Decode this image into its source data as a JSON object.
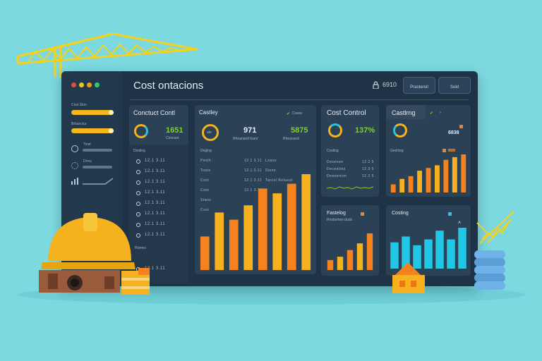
{
  "window": {
    "title": "Cost ontacions",
    "lock_text": "6910",
    "btn1": "Pranteroil",
    "btn2": "Sold",
    "dots": [
      "#e74c3c",
      "#f1c40f",
      "#f39c12",
      "#2ecc71"
    ]
  },
  "sidebar": {
    "label1": "Cost Stoo",
    "label2": "Brbunctur",
    "items": [
      {
        "icon": "c-icon",
        "label": "Tinst"
      },
      {
        "icon": "gear-icon",
        "label": "Drrec"
      },
      {
        "icon": "chart-icon",
        "label": ""
      }
    ]
  },
  "panel1": {
    "title": "Conctuct Contl",
    "kpi": "1651",
    "kpi_sub": "Concast",
    "section": "Desting",
    "rows": [
      "12.1 3.11",
      "12.1 3.11",
      "12.1 3.11",
      "12.1 3.11",
      "12.1 3.11",
      "12.1 3.11",
      "12.1 3.11",
      "12.1 3.11"
    ],
    "footer": "Romes",
    "footer2": "12.1 3.11"
  },
  "panel2": {
    "title": "Castley",
    "badge": "Cosse",
    "ring_label": "ate",
    "kpi1": "971",
    "kpi1_sub": "Rheansed toanr",
    "kpi2": "5875",
    "kpi2_sub": "Rheansed",
    "section": "Deging",
    "rows": [
      {
        "a": "Pesth",
        "b": "12.1 3.11",
        "c": "Loase"
      },
      {
        "a": "Toats",
        "b": "12.1 3.11",
        "c": "Siene"
      },
      {
        "a": "Cost",
        "b": "12.1 3.11",
        "c": "Tarcol Retuest"
      },
      {
        "a": "Cost",
        "b": "12.1 3.11",
        "c": ""
      },
      {
        "a": "Stans",
        "b": "",
        "c": ""
      },
      {
        "a": "Cost",
        "b": "",
        "c": ""
      }
    ]
  },
  "panel3": {
    "title": "Cost Control",
    "kpi": "137%",
    "section": "Cosling",
    "rows": [
      {
        "a": "Desenee",
        "b": "12.3 5"
      },
      {
        "a": "Deceaties",
        "b": "12.3 5"
      },
      {
        "a": "Deseenion",
        "b": "12.3 5"
      }
    ]
  },
  "panel4": {
    "title": "Castlrng",
    "kpi": "6838",
    "section": "Geshtsg",
    "chart_values": [
      3,
      5,
      6,
      8,
      9,
      10,
      12,
      13,
      14
    ]
  },
  "panel5": {
    "title": "Fastelog",
    "sub": "Rnsbortwn duds",
    "chart_values": [
      3,
      4,
      6,
      8,
      11
    ]
  },
  "panel6": {
    "title": "Costing",
    "chart_values": [
      9,
      11,
      8,
      10,
      13,
      10,
      14
    ]
  },
  "main_chart": {
    "values": [
      14,
      24,
      21,
      27,
      34,
      32,
      36,
      40
    ]
  },
  "colors": {
    "accent_orange": "#f6821f",
    "accent_yellow": "#f6b21e",
    "accent_cyan": "#23c6e4",
    "kpi_green": "#7ed321",
    "background": "#7dd9e0",
    "window": "#1f3347"
  }
}
